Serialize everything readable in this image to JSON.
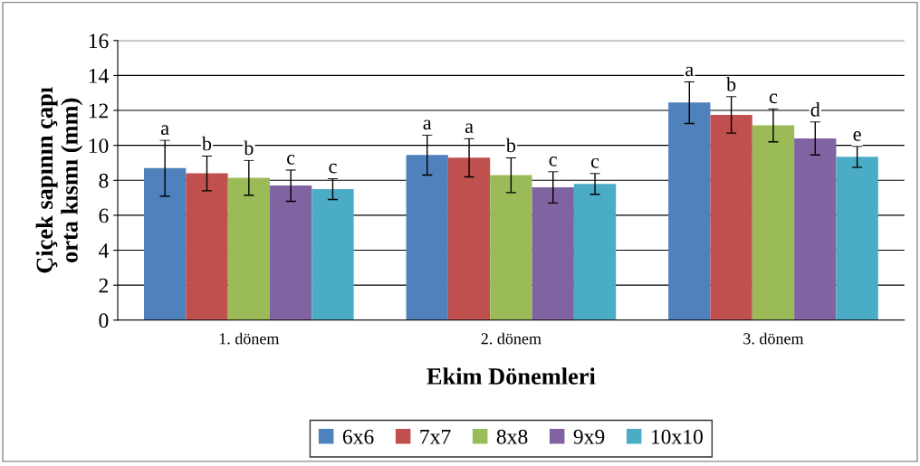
{
  "chart_data": {
    "type": "bar",
    "xlabel": "Ekim Dönemleri",
    "ylabel": "Çiçek sapının çapı\norta kısmı (mm)",
    "categories": [
      "1. dönem",
      "2. dönem",
      "3. dönem"
    ],
    "series": [
      {
        "name": "6x6",
        "color": "#4f81bd",
        "values": [
          8.7,
          9.45,
          12.45
        ],
        "errors": [
          1.6,
          1.15,
          1.2
        ]
      },
      {
        "name": "7x7",
        "color": "#c0504d",
        "values": [
          8.4,
          9.3,
          11.75
        ],
        "errors": [
          1.0,
          1.1,
          1.05
        ]
      },
      {
        "name": "8x8",
        "color": "#9bbb59",
        "values": [
          8.15,
          8.3,
          11.15
        ],
        "errors": [
          1.0,
          1.0,
          0.95
        ]
      },
      {
        "name": "9x9",
        "color": "#8064a2",
        "values": [
          7.7,
          7.6,
          10.4
        ],
        "errors": [
          0.9,
          0.9,
          0.95
        ]
      },
      {
        "name": "10x10",
        "color": "#4bacc6",
        "values": [
          7.5,
          7.8,
          9.35
        ],
        "errors": [
          0.6,
          0.6,
          0.6
        ]
      }
    ],
    "annotations": [
      "a",
      "b",
      "b",
      "c",
      "c",
      "a",
      "a",
      "b",
      "c",
      "c",
      "a",
      "b",
      "c",
      "d",
      "e"
    ],
    "ylim": [
      0,
      16
    ],
    "yticks": [
      0,
      2,
      4,
      6,
      8,
      10,
      12,
      14,
      16
    ],
    "grid": "y",
    "legend": "bottom"
  }
}
